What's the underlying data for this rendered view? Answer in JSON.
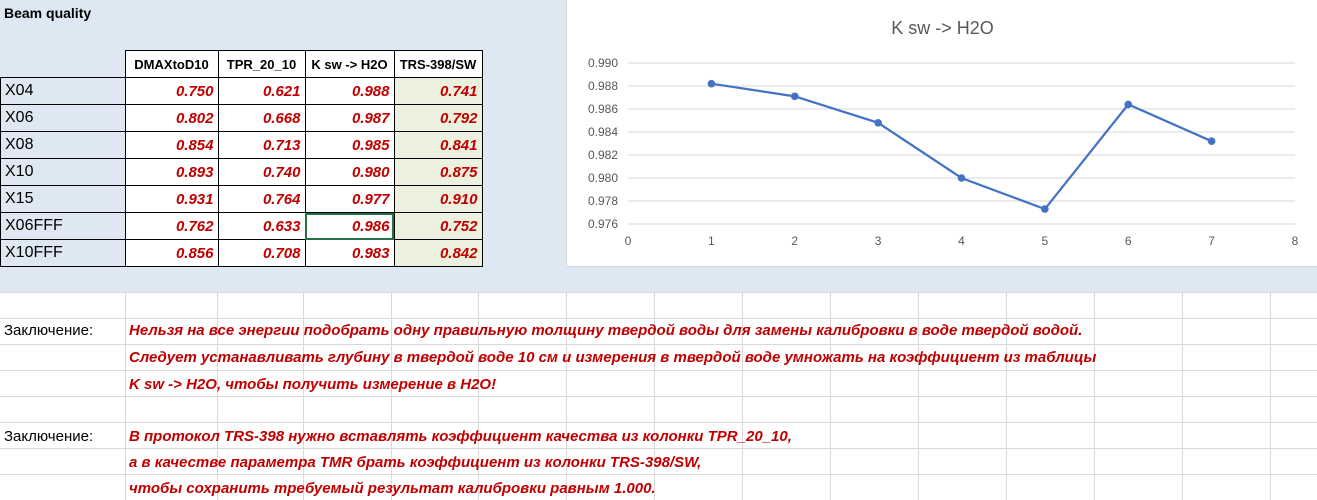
{
  "sheet": {
    "title": "Beam quality",
    "headers": [
      "DMAXtoD10",
      "TPR_20_10",
      "K sw -> H2O",
      "TRS-398/SW"
    ],
    "rows": [
      {
        "label": "X04",
        "dmax": "0.750",
        "tpr": "0.621",
        "ksw": "0.988",
        "trs": "0.741"
      },
      {
        "label": "X06",
        "dmax": "0.802",
        "tpr": "0.668",
        "ksw": "0.987",
        "trs": "0.792"
      },
      {
        "label": "X08",
        "dmax": "0.854",
        "tpr": "0.713",
        "ksw": "0.985",
        "trs": "0.841"
      },
      {
        "label": "X10",
        "dmax": "0.893",
        "tpr": "0.740",
        "ksw": "0.980",
        "trs": "0.875"
      },
      {
        "label": "X15",
        "dmax": "0.931",
        "tpr": "0.764",
        "ksw": "0.977",
        "trs": "0.910"
      },
      {
        "label": "X06FFF",
        "dmax": "0.762",
        "tpr": "0.633",
        "ksw": "0.986",
        "trs": "0.752"
      },
      {
        "label": "X10FFF",
        "dmax": "0.856",
        "tpr": "0.708",
        "ksw": "0.983",
        "trs": "0.842"
      }
    ]
  },
  "chart_data": {
    "type": "line",
    "title": "K sw -> H2O",
    "xlabel": "",
    "ylabel": "",
    "xlim": [
      0,
      8
    ],
    "ylim": [
      0.976,
      0.99
    ],
    "x_ticks": [
      "0",
      "1",
      "2",
      "3",
      "4",
      "5",
      "6",
      "7",
      "8"
    ],
    "y_ticks": [
      "0.976",
      "0.978",
      "0.980",
      "0.982",
      "0.984",
      "0.986",
      "0.988",
      "0.990"
    ],
    "grid": true,
    "legend": "none",
    "series": [
      {
        "x": [
          1,
          2,
          3,
          4,
          5,
          6,
          7
        ],
        "values": [
          0.9882,
          0.9871,
          0.9848,
          0.98,
          0.9773,
          0.9864,
          0.9832
        ],
        "color": "#4472c4"
      }
    ]
  },
  "conclusions": [
    {
      "label": "Заключение:",
      "lines": [
        "Нельзя на все энергии подобрать одну правильную толщину твердой воды для замены калибровки в воде твердой водой.",
        "Следует устанавливать глубину в твердой воде 10 см и измерения в твердой воде умножать на коэффициент из таблицы",
        "K sw -> H2O, чтобы получить измерение в H2O!"
      ]
    },
    {
      "label": "Заключение:",
      "lines": [
        "В протокол TRS-398 нужно вставлять коэффициент качества из колонки TPR_20_10,",
        "а в качестве параметра  TMR брать коэффициент из колонки TRS-398/SW,",
        "чтобы сохранить требуемый результат калибровки равным 1.000."
      ]
    }
  ],
  "colors": {
    "accent_red": "#c00000",
    "band": "#dde8f3",
    "trs_fill": "#ebf1de",
    "series": "#4472c4"
  }
}
